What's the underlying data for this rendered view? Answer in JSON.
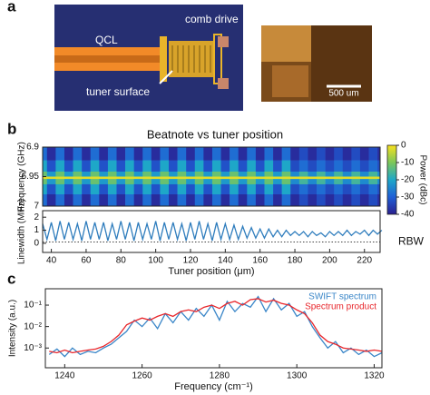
{
  "panel_labels": [
    "a",
    "b",
    "c"
  ],
  "panel_a": {
    "labels": [
      "QCL",
      "comb drive",
      "tuner surface"
    ],
    "scale_bar": "500 um"
  },
  "chart_data": [
    {
      "type": "heatmap",
      "title": "Beatnote vs tuner position",
      "ylabel": "Frequency (GHz)",
      "x": [
        35,
        40,
        45,
        50,
        55,
        60,
        65,
        70,
        75,
        80,
        85,
        90,
        95,
        100,
        105,
        110,
        115,
        120,
        125,
        130,
        135,
        140,
        145,
        150,
        155,
        160,
        165,
        170,
        175,
        180,
        185,
        190,
        195,
        200,
        205,
        210,
        215,
        220,
        225,
        230
      ],
      "y": [
        6.91,
        6.935,
        6.948,
        6.952,
        6.956,
        6.97,
        6.99
      ],
      "z": [
        [
          -28,
          -38,
          -28,
          -38,
          -28,
          -38,
          -28,
          -38,
          -28,
          -38,
          -28,
          -38,
          -28,
          -38,
          -28,
          -38,
          -28,
          -38,
          -28,
          -38,
          -28,
          -38,
          -28,
          -38,
          -28,
          -38,
          -28,
          -38,
          -28,
          -38,
          -33,
          -38,
          -33,
          -38,
          -33,
          -38,
          -33,
          -38,
          -33,
          -38
        ],
        [
          -20,
          -32,
          -20,
          -32,
          -20,
          -32,
          -20,
          -32,
          -20,
          -32,
          -20,
          -32,
          -20,
          -32,
          -20,
          -32,
          -20,
          -32,
          -20,
          -32,
          -20,
          -32,
          -20,
          -32,
          -20,
          -32,
          -20,
          -32,
          -20,
          -33,
          -28,
          -33,
          -28,
          -33,
          -28,
          -33,
          -28,
          -33,
          -28,
          -33
        ],
        [
          -12,
          -22,
          -12,
          -22,
          -12,
          -22,
          -12,
          -22,
          -12,
          -22,
          -12,
          -22,
          -12,
          -22,
          -12,
          -22,
          -12,
          -22,
          -12,
          -22,
          -12,
          -22,
          -12,
          -22,
          -12,
          -22,
          -12,
          -22,
          -12,
          -24,
          -16,
          -24,
          -16,
          -24,
          -16,
          -24,
          -16,
          -24,
          -16,
          -24
        ],
        [
          -2,
          -2,
          -2,
          -2,
          -2,
          -2,
          -2,
          -2,
          -2,
          -2,
          -2,
          -2,
          -2,
          -2,
          -2,
          -2,
          -2,
          -2,
          -2,
          -2,
          -2,
          -2,
          -2,
          -2,
          -2,
          -2,
          -2,
          -2,
          -2,
          -2,
          -2,
          -2,
          -2,
          -2,
          -2,
          -2,
          -2,
          -2,
          -2,
          -2
        ],
        [
          -12,
          -22,
          -12,
          -22,
          -12,
          -22,
          -12,
          -22,
          -12,
          -22,
          -12,
          -22,
          -12,
          -22,
          -12,
          -22,
          -12,
          -22,
          -12,
          -22,
          -12,
          -22,
          -12,
          -22,
          -12,
          -22,
          -12,
          -22,
          -12,
          -24,
          -16,
          -24,
          -16,
          -24,
          -16,
          -24,
          -16,
          -24,
          -16,
          -24
        ],
        [
          -20,
          -32,
          -20,
          -32,
          -20,
          -32,
          -20,
          -32,
          -20,
          -32,
          -20,
          -32,
          -20,
          -32,
          -20,
          -32,
          -20,
          -32,
          -20,
          -32,
          -20,
          -32,
          -20,
          -32,
          -20,
          -32,
          -20,
          -32,
          -20,
          -33,
          -28,
          -33,
          -28,
          -33,
          -28,
          -33,
          -28,
          -33,
          -28,
          -33
        ],
        [
          -28,
          -38,
          -28,
          -38,
          -28,
          -38,
          -28,
          -38,
          -28,
          -38,
          -28,
          -38,
          -28,
          -38,
          -28,
          -38,
          -28,
          -38,
          -28,
          -38,
          -28,
          -38,
          -28,
          -38,
          -28,
          -38,
          -28,
          -38,
          -28,
          -38,
          -33,
          -38,
          -33,
          -38,
          -33,
          -38,
          -33,
          -38,
          -33,
          -38
        ]
      ],
      "xlim": [
        35,
        229
      ],
      "ylim": [
        7,
        6.9
      ],
      "yticks": [
        6.9,
        6.95,
        7
      ],
      "colorbar_label": "Power (dBc)",
      "clim": [
        -40,
        0
      ],
      "colorbar_ticks": [
        0,
        -10,
        -20,
        -30,
        -40
      ],
      "colorscale": [
        "#2a1f8f",
        "#1f5fd6",
        "#1ea7c8",
        "#7cc75a",
        "#f9e21e"
      ]
    },
    {
      "type": "line",
      "ylabel": "Linewidth (MHz)",
      "xlabel": "Tuner position (μm)",
      "x": [
        35,
        37.5,
        40,
        42.5,
        45,
        47.5,
        50,
        52.5,
        55,
        57.5,
        60,
        62.5,
        65,
        67.5,
        70,
        72.5,
        75,
        77.5,
        80,
        82.5,
        85,
        87.5,
        90,
        92.5,
        95,
        97.5,
        100,
        102.5,
        105,
        107.5,
        110,
        112.5,
        115,
        117.5,
        120,
        122.5,
        125,
        127.5,
        130,
        132.5,
        135,
        137.5,
        140,
        142.5,
        145,
        147.5,
        150,
        152.5,
        155,
        157.5,
        160,
        162.5,
        165,
        167.5,
        170,
        172.5,
        175,
        177.5,
        180,
        182.5,
        185,
        187.5,
        190,
        192.5,
        195,
        197.5,
        200,
        202.5,
        205,
        207.5,
        210,
        212.5,
        215,
        217.5,
        220,
        222.5,
        225,
        227.5,
        230
      ],
      "values": [
        1.5,
        0.3,
        1.6,
        0.2,
        1.7,
        0.3,
        1.6,
        0.3,
        1.5,
        0.2,
        1.7,
        0.3,
        1.6,
        0.3,
        1.6,
        0.2,
        1.5,
        0.3,
        1.7,
        0.3,
        1.6,
        0.2,
        1.6,
        0.3,
        1.5,
        0.3,
        1.7,
        0.2,
        1.6,
        0.3,
        1.6,
        0.3,
        1.5,
        0.2,
        1.6,
        0.3,
        1.7,
        0.3,
        1.5,
        0.2,
        1.6,
        0.3,
        1.5,
        0.3,
        1.4,
        0.3,
        1.3,
        0.4,
        1.2,
        0.4,
        1.1,
        0.4,
        1.1,
        0.5,
        1.0,
        0.5,
        1.0,
        0.6,
        0.9,
        0.6,
        0.9,
        0.5,
        0.9,
        0.6,
        0.8,
        0.5,
        0.9,
        0.6,
        0.9,
        0.6,
        1.0,
        0.6,
        0.9,
        0.7,
        1.0,
        0.6,
        1.0,
        0.7,
        1.0
      ],
      "color": "#2f7dbd",
      "xlim": [
        35,
        229
      ],
      "ylim": [
        -0.7,
        2.5
      ],
      "yticks": [
        0,
        1,
        2
      ],
      "xticks": [
        40,
        60,
        80,
        100,
        120,
        140,
        160,
        180,
        200,
        220
      ],
      "reference_line": {
        "label": "RBW",
        "value": 0.1
      }
    },
    {
      "type": "line",
      "ylabel": "Intensity (a.u.)",
      "xlabel": "Frequency (cm⁻¹)",
      "log_y": true,
      "legend": "upper-right",
      "x": [
        1236,
        1238,
        1240,
        1242,
        1244,
        1246,
        1248,
        1250,
        1252,
        1254,
        1256,
        1258,
        1260,
        1262,
        1264,
        1266,
        1268,
        1270,
        1272,
        1274,
        1276,
        1278,
        1280,
        1282,
        1284,
        1286,
        1288,
        1290,
        1292,
        1294,
        1296,
        1298,
        1300,
        1302,
        1304,
        1306,
        1308,
        1310,
        1312,
        1314,
        1316,
        1318,
        1320,
        1322
      ],
      "series": [
        {
          "name": "SWIFT spectrum",
          "color": "#3a86c8",
          "values": [
            0.0005,
            0.0009,
            0.0004,
            0.001,
            0.0005,
            0.0007,
            0.0006,
            0.001,
            0.0015,
            0.003,
            0.006,
            0.02,
            0.01,
            0.025,
            0.008,
            0.04,
            0.015,
            0.05,
            0.02,
            0.07,
            0.03,
            0.1,
            0.02,
            0.15,
            0.05,
            0.12,
            0.08,
            0.25,
            0.05,
            0.2,
            0.06,
            0.12,
            0.03,
            0.05,
            0.01,
            0.003,
            0.001,
            0.002,
            0.0006,
            0.001,
            0.0005,
            0.0008,
            0.0004,
            0.0006
          ]
        },
        {
          "name": "Spectrum product",
          "color": "#e8262b",
          "values": [
            0.0007,
            0.0006,
            0.0008,
            0.0006,
            0.0007,
            0.0008,
            0.0009,
            0.0012,
            0.002,
            0.004,
            0.012,
            0.018,
            0.025,
            0.02,
            0.03,
            0.04,
            0.03,
            0.05,
            0.06,
            0.05,
            0.08,
            0.1,
            0.07,
            0.12,
            0.15,
            0.1,
            0.18,
            0.2,
            0.14,
            0.17,
            0.12,
            0.1,
            0.06,
            0.04,
            0.015,
            0.004,
            0.002,
            0.0015,
            0.001,
            0.0009,
            0.0008,
            0.0007,
            0.0008,
            0.0007
          ]
        }
      ],
      "xlim": [
        1235,
        1322
      ],
      "ylim": [
        0.00012,
        0.58
      ],
      "yticks": [
        {
          "value": 0.001,
          "label": "10⁻³"
        },
        {
          "value": 0.01,
          "label": "10⁻²"
        },
        {
          "value": 0.1,
          "label": "10⁻¹"
        }
      ],
      "xticks": [
        1240,
        1260,
        1280,
        1300,
        1320
      ]
    }
  ]
}
